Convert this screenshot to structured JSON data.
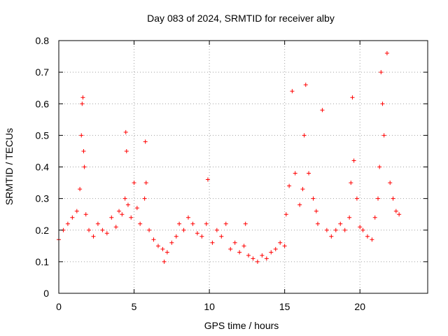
{
  "chart_data": {
    "type": "scatter",
    "title": "Day 083 of 2024, SRMTID for receiver alby",
    "xlabel": "GPS time / hours",
    "ylabel": "SRMTID / TECUs",
    "xlim": [
      0,
      24.5
    ],
    "ylim": [
      0,
      0.8
    ],
    "x_ticks": [
      0,
      5,
      10,
      15,
      20
    ],
    "x_tick_labels": [
      "0",
      "5",
      "10",
      "15",
      "20"
    ],
    "y_ticks": [
      0,
      0.1,
      0.2,
      0.3,
      0.4,
      0.5,
      0.6,
      0.7,
      0.8
    ],
    "y_tick_labels": [
      "0",
      "0.1",
      "0.2",
      "0.3",
      "0.4",
      "0.5",
      "0.6",
      "0.7",
      "0.8"
    ],
    "grid": true,
    "marker": "+",
    "color": "#ff0000",
    "x_range_of_data": [
      0,
      22.7
    ],
    "series": [
      {
        "name": "SRMTID",
        "x": [
          0.0,
          0.3,
          0.6,
          0.9,
          1.2,
          1.4,
          1.5,
          1.55,
          1.6,
          1.65,
          1.7,
          1.8,
          2.0,
          2.3,
          2.6,
          2.9,
          3.2,
          3.5,
          3.8,
          4.0,
          4.2,
          4.4,
          4.45,
          4.5,
          4.6,
          4.8,
          5.0,
          5.2,
          5.4,
          5.7,
          5.75,
          5.8,
          6.0,
          6.3,
          6.6,
          6.9,
          7.0,
          7.2,
          7.5,
          7.8,
          8.0,
          8.3,
          8.6,
          8.9,
          9.2,
          9.5,
          9.8,
          9.9,
          10.2,
          10.5,
          10.8,
          11.1,
          11.4,
          11.7,
          12.0,
          12.3,
          12.4,
          12.6,
          12.9,
          13.2,
          13.5,
          13.8,
          14.1,
          14.4,
          14.7,
          15.0,
          15.1,
          15.3,
          15.5,
          15.7,
          16.0,
          16.2,
          16.3,
          16.4,
          16.6,
          16.9,
          17.1,
          17.2,
          17.5,
          17.8,
          18.1,
          18.4,
          18.7,
          19.0,
          19.3,
          19.4,
          19.5,
          19.6,
          19.8,
          20.0,
          20.2,
          20.5,
          20.8,
          21.0,
          21.2,
          21.3,
          21.4,
          21.5,
          21.6,
          21.8,
          22.0,
          22.2,
          22.4,
          22.6
        ],
        "y": [
          0.17,
          0.2,
          0.22,
          0.24,
          0.26,
          0.33,
          0.5,
          0.6,
          0.62,
          0.45,
          0.4,
          0.25,
          0.2,
          0.18,
          0.22,
          0.2,
          0.19,
          0.24,
          0.21,
          0.26,
          0.25,
          0.3,
          0.51,
          0.45,
          0.28,
          0.24,
          0.35,
          0.27,
          0.22,
          0.3,
          0.48,
          0.35,
          0.2,
          0.17,
          0.15,
          0.14,
          0.1,
          0.13,
          0.16,
          0.18,
          0.22,
          0.2,
          0.24,
          0.22,
          0.19,
          0.18,
          0.22,
          0.36,
          0.16,
          0.2,
          0.18,
          0.22,
          0.14,
          0.16,
          0.13,
          0.15,
          0.22,
          0.12,
          0.11,
          0.1,
          0.12,
          0.11,
          0.13,
          0.14,
          0.16,
          0.15,
          0.25,
          0.34,
          0.64,
          0.38,
          0.28,
          0.33,
          0.5,
          0.66,
          0.38,
          0.3,
          0.26,
          0.22,
          0.58,
          0.2,
          0.18,
          0.2,
          0.22,
          0.2,
          0.24,
          0.35,
          0.62,
          0.42,
          0.3,
          0.21,
          0.2,
          0.18,
          0.17,
          0.24,
          0.3,
          0.4,
          0.7,
          0.6,
          0.5,
          0.76,
          0.35,
          0.3,
          0.26,
          0.25
        ]
      }
    ]
  }
}
